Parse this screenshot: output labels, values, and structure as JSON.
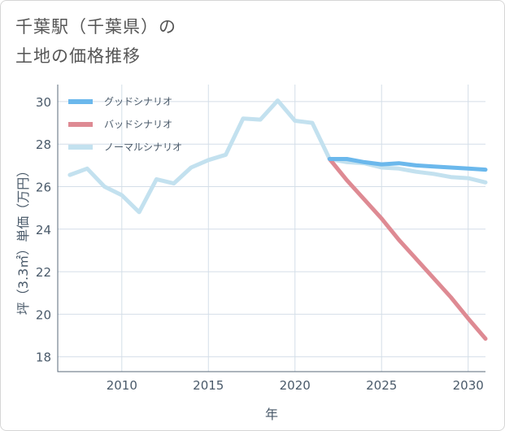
{
  "page": {
    "title_line1": "千葉駅（千葉県）の",
    "title_line2": "土地の価格推移"
  },
  "colors": {
    "good": "#6bb8ec",
    "bad": "#de8a93",
    "normal": "#c3e1ef",
    "grid": "#d4dee8",
    "frame": "#5a6a7a"
  },
  "chart_data": {
    "type": "line",
    "title": "千葉駅（千葉県）の土地の価格推移",
    "xlabel": "年",
    "ylabel": "坪（3.3㎡）単価（万円）",
    "xlim": [
      2006.3,
      2031
    ],
    "ylim": [
      17.3,
      30.8
    ],
    "xticks": [
      2010,
      2015,
      2020,
      2025,
      2030
    ],
    "yticks": [
      18,
      20,
      22,
      24,
      26,
      28,
      30
    ],
    "legend_position": "top-left",
    "series": [
      {
        "name": "グッドシナリオ",
        "color": "#6bb8ec",
        "width": 5,
        "x": [
          2022,
          2023,
          2024,
          2025,
          2026,
          2027,
          2028,
          2029,
          2030,
          2031
        ],
        "y": [
          27.3,
          27.3,
          27.15,
          27.05,
          27.1,
          27.0,
          26.95,
          26.9,
          26.85,
          26.8
        ]
      },
      {
        "name": "バッドシナリオ",
        "color": "#de8a93",
        "width": 5,
        "x": [
          2022,
          2023,
          2024,
          2025,
          2026,
          2027,
          2028,
          2029,
          2030,
          2031
        ],
        "y": [
          27.3,
          26.3,
          25.4,
          24.5,
          23.5,
          22.6,
          21.7,
          20.8,
          19.8,
          18.85
        ]
      },
      {
        "name": "ノーマルシナリオ",
        "color": "#c3e1ef",
        "width": 5,
        "x": [
          2007,
          2008,
          2009,
          2010,
          2011,
          2012,
          2013,
          2014,
          2015,
          2016,
          2017,
          2018,
          2019,
          2020,
          2021,
          2022,
          2023,
          2024,
          2025,
          2026,
          2027,
          2028,
          2029,
          2030,
          2031
        ],
        "y": [
          26.55,
          26.85,
          26.0,
          25.6,
          24.8,
          26.35,
          26.15,
          26.9,
          27.25,
          27.5,
          29.2,
          29.15,
          30.05,
          29.1,
          29.0,
          27.3,
          27.15,
          27.1,
          26.9,
          26.85,
          26.7,
          26.6,
          26.45,
          26.4,
          26.2
        ]
      }
    ]
  }
}
